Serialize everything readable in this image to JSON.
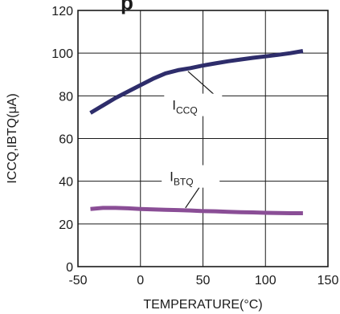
{
  "chart_data": {
    "type": "line",
    "title": "p",
    "xlabel": "TEMPERATURE(°C)",
    "ylabel": "ICCQ,IBTQ(μA)",
    "xlim": [
      -50,
      150
    ],
    "ylim": [
      0,
      120
    ],
    "x_ticks": [
      "-50",
      "0",
      "50",
      "100",
      "150"
    ],
    "y_ticks": [
      "0",
      "20",
      "40",
      "60",
      "80",
      "100",
      "120"
    ],
    "grid": true,
    "series": [
      {
        "color": "#2e2d6b",
        "x": [
          -40,
          -30,
          -20,
          -10,
          0,
          10,
          20,
          30,
          40,
          50,
          60,
          70,
          80,
          90,
          100,
          110,
          120,
          130
        ],
        "y": [
          72,
          75.5,
          79,
          82,
          85,
          88,
          90.5,
          92,
          93,
          94.2,
          95.2,
          96.2,
          97,
          97.8,
          98.5,
          99.2,
          100,
          101
        ]
      },
      {
        "color": "#8a4e96",
        "x": [
          -40,
          -30,
          -20,
          -10,
          0,
          10,
          20,
          30,
          40,
          50,
          60,
          70,
          80,
          90,
          100,
          110,
          120,
          130
        ],
        "y": [
          27,
          27.5,
          27.5,
          27.3,
          27,
          26.8,
          26.6,
          26.5,
          26.3,
          26,
          25.9,
          25.7,
          25.5,
          25.4,
          25.2,
          25.1,
          25,
          25
        ]
      }
    ],
    "annotations": [
      {
        "base": "I",
        "sub": "CCQ"
      },
      {
        "base": "I",
        "sub": "BTQ"
      }
    ]
  }
}
